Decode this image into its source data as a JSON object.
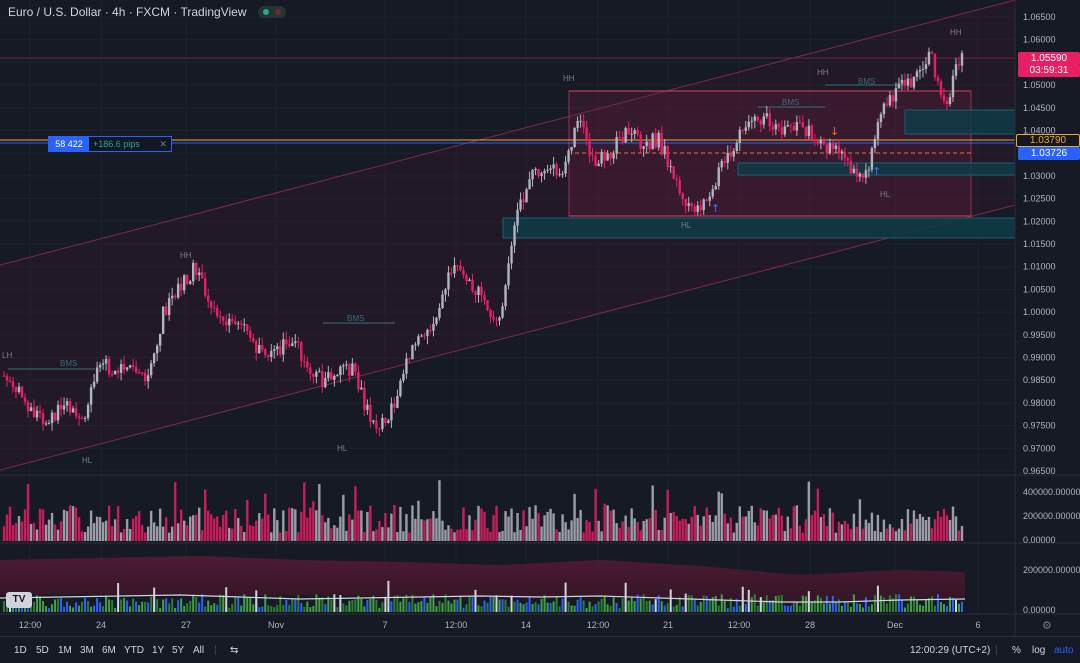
{
  "title": "Euro / U.S. Dollar · 4h · FXCM · TradingView",
  "price_tags": {
    "current_price": "1.05590",
    "countdown": "03:59:31",
    "level_orange": "1.03790",
    "level_blue": "1.03726"
  },
  "measure": {
    "value": "58 422",
    "pips": "+186.6 pips",
    "close": "✕"
  },
  "annotations": [
    "HH",
    "HH",
    "HH",
    "HH",
    "HL",
    "HL",
    "HL",
    "HL",
    "LH",
    "BMS",
    "BMS",
    "BMS",
    "BMS"
  ],
  "bottom_bar": {
    "timeframes": [
      "1D",
      "5D",
      "1M",
      "3M",
      "6M",
      "YTD",
      "1Y",
      "5Y",
      "All"
    ],
    "clock": "12:00:29 (UTC+2)",
    "percent": "%",
    "log": "log",
    "auto": "auto"
  },
  "colors": {
    "bg": "#161a25",
    "up": "#b2b5be",
    "down": "#e91e63",
    "zone": "#0d3a44",
    "accent": "#2962ff"
  },
  "chart_data": {
    "type": "candlestick",
    "symbol": "EUR/USD",
    "y_ticks": [
      "1.06500",
      "1.06000",
      "1.05500",
      "1.05000",
      "1.04500",
      "1.04000",
      "1.03500",
      "1.03000",
      "1.02500",
      "1.02000",
      "1.01500",
      "1.01000",
      "1.00500",
      "1.00000",
      "0.99500",
      "0.99000",
      "0.98500",
      "0.98000",
      "0.97500",
      "0.97000",
      "0.96500"
    ],
    "ylim": [
      0.965,
      1.065
    ],
    "x_ticks": [
      "12:00",
      "24",
      "27",
      "Nov",
      "7",
      "12:00",
      "14",
      "12:00",
      "21",
      "12:00",
      "28",
      "Dec",
      "6"
    ],
    "close_path": [
      0.986,
      0.982,
      0.977,
      0.977,
      0.98,
      0.976,
      0.989,
      0.987,
      0.989,
      0.984,
      1.0,
      1.005,
      1.01,
      1.002,
      0.997,
      0.996,
      0.991,
      0.991,
      0.994,
      0.989,
      0.984,
      0.988,
      0.987,
      0.975,
      0.975,
      0.987,
      0.995,
      0.998,
      1.01,
      1.008,
      1.003,
      0.997,
      1.02,
      1.03,
      1.033,
      1.031,
      1.043,
      1.033,
      1.035,
      1.04,
      1.037,
      1.038,
      1.03,
      1.022,
      1.025,
      1.032,
      1.039,
      1.043,
      1.042,
      1.04,
      1.041,
      1.037,
      1.036,
      1.032,
      1.03,
      1.045,
      1.049,
      1.051,
      1.057,
      1.045,
      1.058
    ],
    "volume": {
      "y_ticks": [
        "400000.00000",
        "200000.00000",
        "0.00000"
      ],
      "ylim": [
        0,
        400000
      ]
    },
    "indicator": {
      "y_ticks": [
        "200000.00000",
        "0.00000"
      ],
      "ylim": [
        0,
        200000
      ]
    }
  }
}
